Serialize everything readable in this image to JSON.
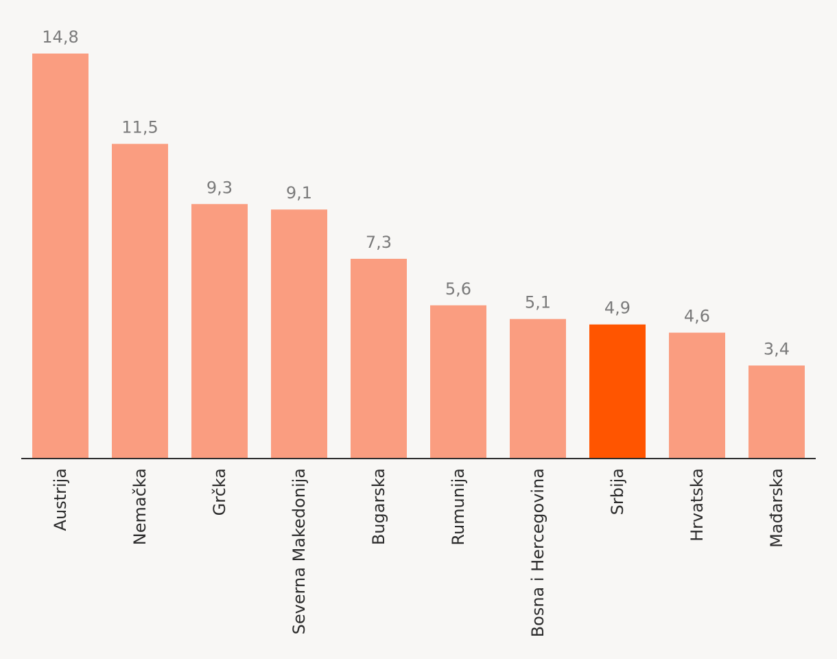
{
  "chart_data": {
    "type": "bar",
    "categories": [
      "Austrija",
      "Nemačka",
      "Grčka",
      "Severna Makedonija",
      "Bugarska",
      "Rumunija",
      "Bosna i Hercegovina",
      "Srbija",
      "Hrvatska",
      "Mađarska"
    ],
    "values": [
      14.8,
      11.5,
      9.3,
      9.1,
      7.3,
      5.6,
      5.1,
      4.9,
      4.6,
      3.4
    ],
    "value_labels": [
      "14,8",
      "11,5",
      "9,3",
      "9,1",
      "7,3",
      "5,6",
      "5,1",
      "4,9",
      "4,6",
      "3,4"
    ],
    "highlight_category": "Srbija",
    "ylim": [
      0,
      14.8
    ],
    "grid": false,
    "legend": "none",
    "colors": {
      "bar": "#fa9d80",
      "highlight": "#ff5500",
      "axis": "#2b2b2b",
      "value_text": "#7a7a7a",
      "category_text": "#2b2b2b",
      "background": "#f8f7f5"
    }
  }
}
